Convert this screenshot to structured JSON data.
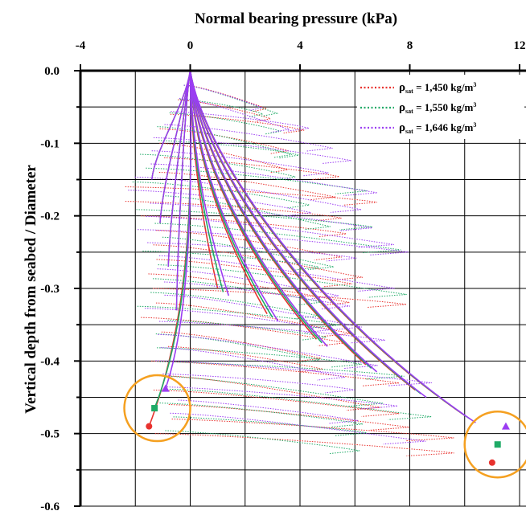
{
  "chart_data": {
    "type": "line",
    "title": "",
    "xlabel": "Normal bearing pressure (kPa)",
    "ylabel": "Vertical depth from seabed / Diameter",
    "xlim": [
      -4,
      12
    ],
    "ylim": [
      -0.6,
      0.0
    ],
    "x_ticks": [
      -4,
      0,
      4,
      8,
      12
    ],
    "x_tick_labels": [
      "-4",
      "0",
      "4",
      "8",
      "12"
    ],
    "y_ticks": [
      0.0,
      -0.1,
      -0.2,
      -0.3,
      -0.4,
      -0.5,
      -0.6
    ],
    "y_tick_labels": [
      "0.0",
      "-0.1",
      "-0.2",
      "-0.3",
      "-0.4",
      "-0.5",
      "-0.6"
    ],
    "grid": true,
    "x_axis_position": "top",
    "legend_position": "top-right",
    "legend": [
      {
        "base": "ρ",
        "sub": "sat",
        "text": " = 1,450 kg/m",
        "sup": "3",
        "color": "#e8322e"
      },
      {
        "base": "ρ",
        "sub": "sat",
        "text": " = 1,550 kg/m",
        "sup": "3",
        "color": "#1faa66"
      },
      {
        "base": "ρ",
        "sub": "sat",
        "text": " = 1,646 kg/m",
        "sup": "3",
        "color": "#9b3cf2"
      }
    ],
    "series": [
      {
        "color": "#e8322e",
        "envelope_max_x": [
          0,
          3.4,
          6.5,
          8.1,
          8.5,
          7.7,
          7.8,
          9.6,
          10.9,
          10.6
        ],
        "envelope_min_x": [
          0,
          -0.8,
          -2.4,
          -2.5,
          -2.5,
          -2.0,
          -1.8,
          -1.4
        ],
        "envelope_depths": [
          0,
          -0.05,
          -0.15,
          -0.25,
          -0.3,
          -0.35,
          -0.4,
          -0.45,
          -0.5,
          -0.55
        ],
        "low_end": {
          "x": -1.5,
          "y": -0.49
        },
        "high_end": {
          "x": 11.0,
          "y": -0.54
        }
      },
      {
        "color": "#1faa66",
        "envelope_max_x": [
          0,
          3.5,
          6.6,
          8.2,
          8.6,
          7.9,
          8.0,
          9.8,
          11.1,
          10.8
        ],
        "envelope_min_x": [
          0,
          -0.8,
          -2.4,
          -2.4,
          -2.4,
          -2.0,
          -1.8,
          -1.2
        ],
        "envelope_depths": [
          0,
          -0.05,
          -0.15,
          -0.25,
          -0.3,
          -0.35,
          -0.4,
          -0.45,
          -0.5,
          -0.55
        ],
        "low_end": {
          "x": -1.3,
          "y": -0.465
        },
        "high_end": {
          "x": 11.2,
          "y": -0.515
        }
      },
      {
        "color": "#9b3cf2",
        "envelope_max_x": [
          0,
          3.6,
          6.8,
          8.4,
          8.8,
          8.0,
          8.1,
          10.0,
          11.4,
          11.2
        ],
        "envelope_min_x": [
          0,
          -0.8,
          -2.3,
          -2.3,
          -2.3,
          -1.9,
          -1.7,
          -1.0
        ],
        "envelope_depths": [
          0,
          -0.05,
          -0.15,
          -0.25,
          -0.3,
          -0.35,
          -0.4,
          -0.45,
          -0.5,
          -0.55
        ],
        "low_end": {
          "x": -0.9,
          "y": -0.438
        },
        "high_end": {
          "x": 11.5,
          "y": -0.49
        }
      }
    ],
    "highlight_circles": [
      {
        "cx": -1.2,
        "cy": -0.465,
        "color": "#f5a020"
      },
      {
        "cx": 11.2,
        "cy": -0.515,
        "color": "#f5a020"
      }
    ]
  }
}
